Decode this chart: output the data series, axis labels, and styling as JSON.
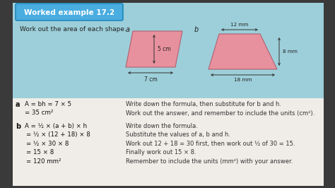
{
  "title": "Worked example 17.2",
  "subtitle": "Work out the area of each shape.",
  "bg_outer": "#3a3a3a",
  "bg_top": "#9dcfda",
  "bg_bottom": "#f0ede8",
  "shape_color": "#e8919e",
  "shape_border": "#b06070",
  "title_bg": "#4aade0",
  "title_border": "#2288bb",
  "title_color": "#ffffff",
  "text_dark": "#222222",
  "text_mid": "#444444",
  "math_a": [
    "A = bh = 7 × 5",
    "= 35 cm²"
  ],
  "note_a": [
    "Write down the formula, then substitute for b and h.",
    "Work out the answer, and remember to include the units (cm²)."
  ],
  "math_b": [
    "A = ½ × (a + b) × h",
    "= ½ × (12 + 18) × 8",
    "= ½ × 30 × 8",
    "= 15 × 8",
    "= 120 mm²"
  ],
  "note_b": [
    "Write down the formula.",
    "Substitute the values of a, b and h.",
    "Work out 12 + 18 = 30 first, then work out ½ of 30 = 15.",
    "Finally work out 15 × 8.",
    "Remember to include the units (mm²) with your answer."
  ]
}
